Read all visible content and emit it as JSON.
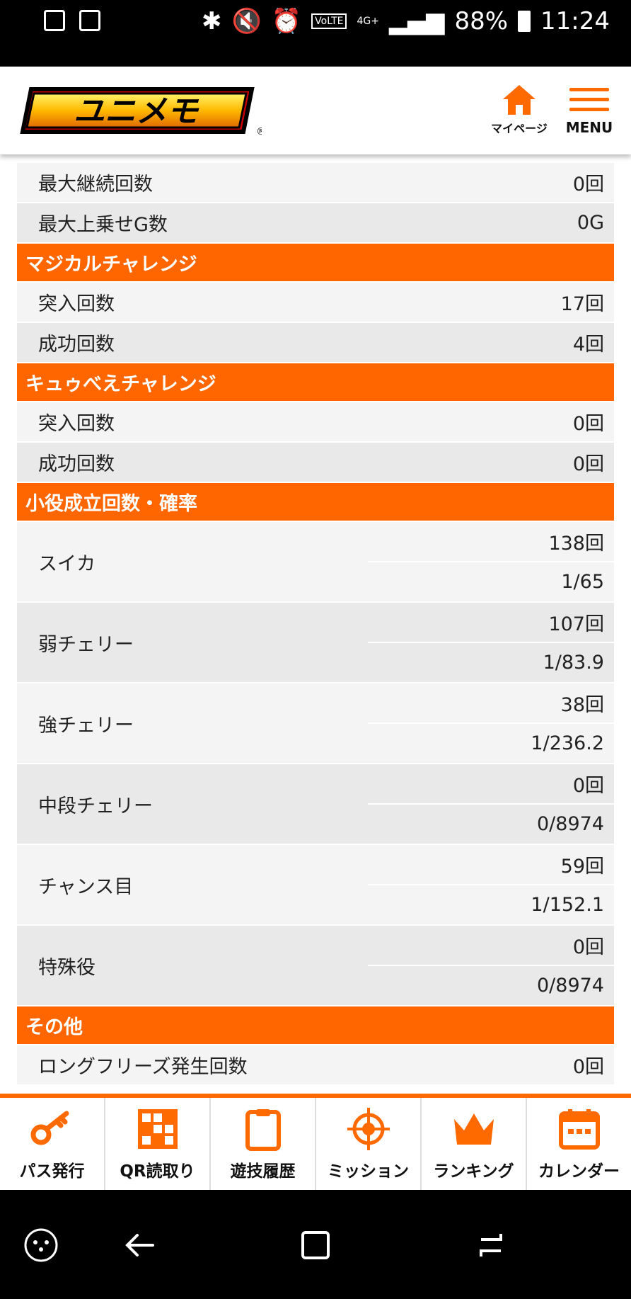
{
  "status_bar": {
    "battery": "88%",
    "time": "11:24",
    "network": "4G+",
    "volte": "VoLTE"
  },
  "header": {
    "logo_text": "ユニメモ",
    "mypage_label": "マイページ",
    "menu_label": "MENU"
  },
  "rows_top": [
    {
      "label": "最大継続回数",
      "value": "0回"
    },
    {
      "label": "最大上乗せG数",
      "value": "0G"
    }
  ],
  "sections": {
    "magical": {
      "title": "マジカルチャレンジ",
      "rows": [
        {
          "label": "突入回数",
          "value": "17回"
        },
        {
          "label": "成功回数",
          "value": "4回"
        }
      ]
    },
    "kyubey": {
      "title": "キュゥべえチャレンジ",
      "rows": [
        {
          "label": "突入回数",
          "value": "0回"
        },
        {
          "label": "成功回数",
          "value": "0回"
        }
      ]
    },
    "koyaku": {
      "title": "小役成立回数・確率",
      "rows": [
        {
          "label": "スイカ",
          "count": "138回",
          "prob": "1/65"
        },
        {
          "label": "弱チェリー",
          "count": "107回",
          "prob": "1/83.9"
        },
        {
          "label": "強チェリー",
          "count": "38回",
          "prob": "1/236.2"
        },
        {
          "label": "中段チェリー",
          "count": "0回",
          "prob": "0/8974"
        },
        {
          "label": "チャンス目",
          "count": "59回",
          "prob": "1/152.1"
        },
        {
          "label": "特殊役",
          "count": "0回",
          "prob": "0/8974"
        }
      ]
    },
    "other": {
      "title": "その他",
      "rows": [
        {
          "label": "ロングフリーズ発生回数",
          "value": "0回"
        }
      ]
    }
  },
  "tabbar": [
    {
      "label": "パス発行",
      "icon": "key-icon"
    },
    {
      "label": "QR読取り",
      "icon": "qr-icon"
    },
    {
      "label": "遊技履歴",
      "icon": "clipboard-icon"
    },
    {
      "label": "ミッション",
      "icon": "target-icon"
    },
    {
      "label": "ランキング",
      "icon": "crown-icon"
    },
    {
      "label": "カレンダー",
      "icon": "calendar-icon"
    }
  ],
  "colors": {
    "accent": "#ff6600",
    "row_light": "#f4f4f4",
    "row_dark": "#e9e9e9"
  }
}
